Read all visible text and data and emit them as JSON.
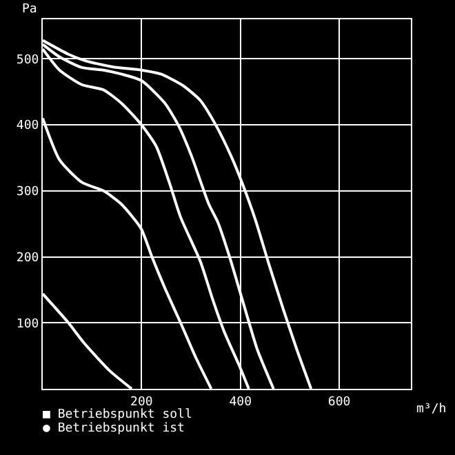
{
  "chart_data": {
    "type": "line",
    "xlabel": "m³/h",
    "ylabel": "Pa",
    "xlim": [
      0,
      745
    ],
    "ylim": [
      0,
      560
    ],
    "xticks": [
      200,
      400,
      600
    ],
    "yticks": [
      100,
      200,
      300,
      400,
      500
    ],
    "grid": true,
    "marker": "none",
    "annotations": [
      "■ Betriebspunkt soll",
      "● Betriebspunkt ist"
    ],
    "series": [
      {
        "color": "#ffffff",
        "x": [
          0,
          52,
          83,
          136,
          180
        ],
        "values": [
          144,
          100,
          70,
          27,
          0
        ]
      },
      {
        "color": "#ffffff",
        "x": [
          0,
          34,
          79,
          123,
          159,
          199,
          221,
          247,
          279,
          310,
          341
        ],
        "values": [
          410,
          347,
          313,
          300,
          280,
          243,
          200,
          153,
          100,
          47,
          0
        ]
      },
      {
        "color": "#ffffff",
        "x": [
          0,
          34,
          79,
          123,
          159,
          200,
          230,
          256,
          279,
          319,
          345,
          367,
          399,
          417
        ],
        "values": [
          515,
          483,
          461,
          453,
          433,
          400,
          367,
          313,
          260,
          193,
          133,
          87,
          33,
          0
        ]
      },
      {
        "color": "#ffffff",
        "x": [
          0,
          34,
          79,
          123,
          159,
          200,
          247,
          274,
          301,
          336,
          354,
          381,
          407,
          434,
          467
        ],
        "values": [
          522,
          503,
          487,
          483,
          477,
          467,
          433,
          400,
          353,
          280,
          253,
          193,
          127,
          60,
          0
        ]
      },
      {
        "color": "#ffffff",
        "x": [
          0,
          52,
          87,
          141,
          200,
          239,
          283,
          319,
          350,
          381,
          403,
          430,
          456,
          487,
          514,
          543
        ],
        "values": [
          528,
          507,
          497,
          488,
          483,
          477,
          460,
          437,
          400,
          353,
          313,
          257,
          193,
          120,
          60,
          0
        ]
      }
    ]
  }
}
